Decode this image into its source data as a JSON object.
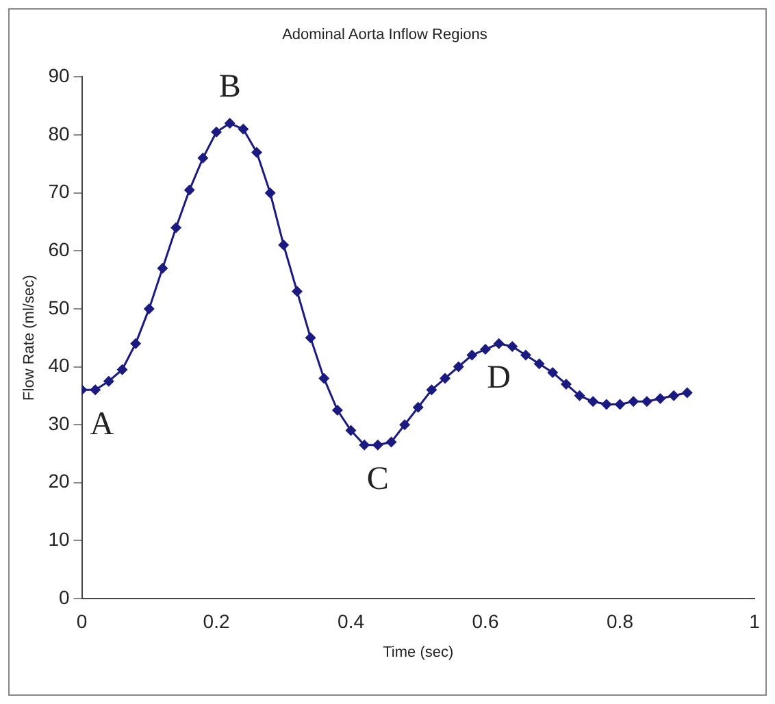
{
  "chart_data": {
    "type": "line",
    "title": "Adominal Aorta Inflow Regions",
    "xlabel": "Time (sec)",
    "ylabel": "Flow Rate (ml/sec)",
    "x": [
      0,
      0.02,
      0.04,
      0.06,
      0.08,
      0.1,
      0.12,
      0.14,
      0.16,
      0.18,
      0.2,
      0.22,
      0.24,
      0.26,
      0.28,
      0.3,
      0.32,
      0.34,
      0.36,
      0.38,
      0.4,
      0.42,
      0.44,
      0.46,
      0.48,
      0.5,
      0.52,
      0.54,
      0.56,
      0.58,
      0.6,
      0.62,
      0.64,
      0.66,
      0.68,
      0.7,
      0.72,
      0.74,
      0.76,
      0.78,
      0.8,
      0.82,
      0.84,
      0.86,
      0.88,
      0.9
    ],
    "series": [
      {
        "color": "#1a1a80",
        "values": [
          36,
          36,
          37.5,
          39.5,
          44,
          50,
          57,
          64,
          70.5,
          76,
          80.5,
          82,
          81,
          77,
          70,
          61,
          53,
          45,
          38,
          32.5,
          29,
          26.5,
          26.5,
          27,
          30,
          33,
          36,
          38,
          40,
          42,
          43,
          44,
          43.5,
          42,
          40.5,
          39,
          37,
          35,
          34,
          33.5,
          33.5,
          34,
          34,
          34.5,
          35,
          35.5
        ]
      }
    ],
    "xlim": [
      0,
      1
    ],
    "xticks": [
      0,
      0.2,
      0.4,
      0.6,
      0.8,
      1
    ],
    "ylim": [
      0,
      90
    ],
    "yticks": [
      0,
      10,
      20,
      30,
      40,
      50,
      60,
      70,
      80,
      90
    ],
    "marker": "diamond",
    "line_style": "solid",
    "grid": false,
    "legend": false,
    "annotations": [
      {
        "text": "A",
        "x": 0,
        "y": 36
      },
      {
        "text": "B",
        "x": 0.22,
        "y": 82
      },
      {
        "text": "C",
        "x": 0.44,
        "y": 26.5
      },
      {
        "text": "D",
        "x": 0.62,
        "y": 44
      }
    ]
  }
}
